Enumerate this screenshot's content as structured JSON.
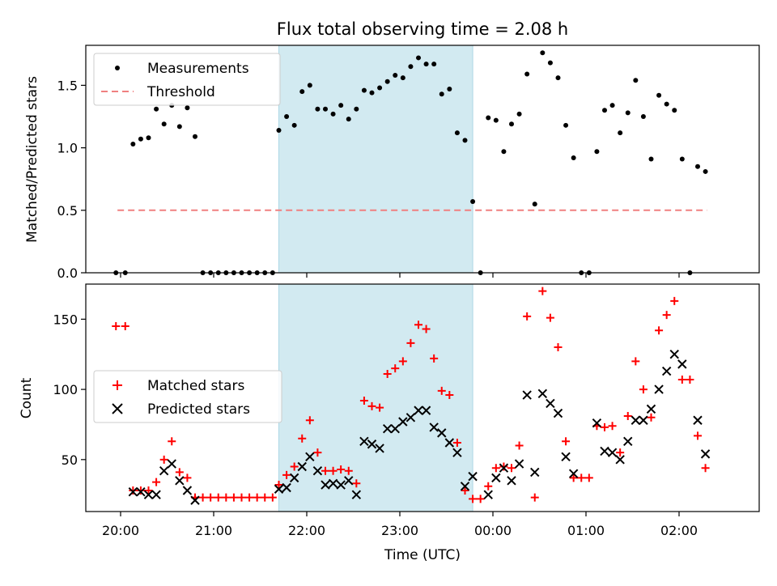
{
  "chart_data": [
    {
      "type": "scatter",
      "title": "Flux total observing time = 2.08 h",
      "xlabel": "",
      "ylabel": "Matched/Predicted stars",
      "ylim": [
        0,
        1.82
      ],
      "yticks": [
        0.0,
        0.5,
        1.0,
        1.5
      ],
      "ytick_labels": [
        "0.0",
        "0.5",
        "1.0",
        "1.5"
      ],
      "xticks": [
        "20:00",
        "21:00",
        "22:00",
        "23:00",
        "00:00",
        "01:00",
        "02:00"
      ],
      "shaded_interval": [
        "21:42",
        "23:47"
      ],
      "shaded_color": "#add8e6",
      "legend": {
        "placement": "upper-left",
        "entries": [
          "Measurements",
          "Threshold"
        ]
      },
      "threshold": {
        "name": "Threshold",
        "value": 0.5,
        "x_start": "19:58",
        "x_end": "02:18",
        "color": "#f08080"
      },
      "series": [
        {
          "name": "Measurements",
          "marker": "dot",
          "color": "#000000",
          "points": [
            [
              "19:57",
              0.0
            ],
            [
              "20:03",
              0.0
            ],
            [
              "20:08",
              1.03
            ],
            [
              "20:13",
              1.07
            ],
            [
              "20:18",
              1.08
            ],
            [
              "20:23",
              1.31
            ],
            [
              "20:28",
              1.19
            ],
            [
              "20:33",
              1.34
            ],
            [
              "20:38",
              1.17
            ],
            [
              "20:43",
              1.32
            ],
            [
              "20:48",
              1.09
            ],
            [
              "20:53",
              0.0
            ],
            [
              "20:58",
              0.0
            ],
            [
              "21:03",
              0.0
            ],
            [
              "21:08",
              0.0
            ],
            [
              "21:13",
              0.0
            ],
            [
              "21:18",
              0.0
            ],
            [
              "21:23",
              0.0
            ],
            [
              "21:28",
              0.0
            ],
            [
              "21:33",
              0.0
            ],
            [
              "21:38",
              0.0
            ],
            [
              "21:42",
              1.14
            ],
            [
              "21:47",
              1.25
            ],
            [
              "21:52",
              1.18
            ],
            [
              "21:57",
              1.45
            ],
            [
              "22:02",
              1.5
            ],
            [
              "22:07",
              1.31
            ],
            [
              "22:12",
              1.31
            ],
            [
              "22:17",
              1.27
            ],
            [
              "22:22",
              1.34
            ],
            [
              "22:27",
              1.23
            ],
            [
              "22:32",
              1.31
            ],
            [
              "22:37",
              1.46
            ],
            [
              "22:42",
              1.44
            ],
            [
              "22:47",
              1.48
            ],
            [
              "22:52",
              1.53
            ],
            [
              "22:57",
              1.58
            ],
            [
              "23:02",
              1.56
            ],
            [
              "23:07",
              1.65
            ],
            [
              "23:12",
              1.72
            ],
            [
              "23:17",
              1.67
            ],
            [
              "23:22",
              1.67
            ],
            [
              "23:27",
              1.43
            ],
            [
              "23:32",
              1.47
            ],
            [
              "23:37",
              1.12
            ],
            [
              "23:42",
              1.06
            ],
            [
              "23:47",
              0.57
            ],
            [
              "23:52",
              0.0
            ],
            [
              "23:57",
              1.24
            ],
            [
              "00:02",
              1.22
            ],
            [
              "00:07",
              0.97
            ],
            [
              "00:12",
              1.19
            ],
            [
              "00:17",
              1.27
            ],
            [
              "00:22",
              1.59
            ],
            [
              "00:27",
              0.55
            ],
            [
              "00:32",
              1.76
            ],
            [
              "00:37",
              1.68
            ],
            [
              "00:42",
              1.56
            ],
            [
              "00:47",
              1.18
            ],
            [
              "00:52",
              0.92
            ],
            [
              "00:57",
              0.0
            ],
            [
              "01:02",
              0.0
            ],
            [
              "01:07",
              0.97
            ],
            [
              "01:12",
              1.3
            ],
            [
              "01:17",
              1.34
            ],
            [
              "01:22",
              1.12
            ],
            [
              "01:27",
              1.28
            ],
            [
              "01:32",
              1.54
            ],
            [
              "01:37",
              1.25
            ],
            [
              "01:42",
              0.91
            ],
            [
              "01:47",
              1.42
            ],
            [
              "01:52",
              1.35
            ],
            [
              "01:57",
              1.3
            ],
            [
              "02:02",
              0.91
            ],
            [
              "02:07",
              0.0
            ],
            [
              "02:12",
              0.85
            ],
            [
              "02:17",
              0.81
            ]
          ]
        }
      ]
    },
    {
      "type": "scatter",
      "title": "",
      "xlabel": "Time (UTC)",
      "ylabel": "Count",
      "ylim": [
        13,
        175
      ],
      "yticks": [
        50,
        100,
        150
      ],
      "ytick_labels": [
        "50",
        "100",
        "150"
      ],
      "xticks": [
        "20:00",
        "21:00",
        "22:00",
        "23:00",
        "00:00",
        "01:00",
        "02:00"
      ],
      "x_tick_labels": [
        "20:00",
        "21:00",
        "22:00",
        "23:00",
        "00:00",
        "01:00",
        "02:00"
      ],
      "shaded_interval": [
        "21:42",
        "23:47"
      ],
      "shaded_color": "#add8e6",
      "legend": {
        "placement": "center-left",
        "entries": [
          "Matched stars",
          "Predicted stars"
        ]
      },
      "series": [
        {
          "name": "Matched stars",
          "marker": "plus",
          "color": "#ff0000",
          "points": [
            [
              "19:57",
              145
            ],
            [
              "20:03",
              145
            ],
            [
              "20:08",
              28
            ],
            [
              "20:13",
              28
            ],
            [
              "20:18",
              28
            ],
            [
              "20:23",
              34
            ],
            [
              "20:28",
              50
            ],
            [
              "20:33",
              63
            ],
            [
              "20:38",
              41
            ],
            [
              "20:43",
              37
            ],
            [
              "20:48",
              23
            ],
            [
              "20:53",
              23
            ],
            [
              "20:58",
              23
            ],
            [
              "21:03",
              23
            ],
            [
              "21:08",
              23
            ],
            [
              "21:13",
              23
            ],
            [
              "21:18",
              23
            ],
            [
              "21:23",
              23
            ],
            [
              "21:28",
              23
            ],
            [
              "21:33",
              23
            ],
            [
              "21:38",
              23
            ],
            [
              "21:42",
              32
            ],
            [
              "21:47",
              39
            ],
            [
              "21:52",
              45
            ],
            [
              "21:57",
              65
            ],
            [
              "22:02",
              78
            ],
            [
              "22:07",
              55
            ],
            [
              "22:12",
              42
            ],
            [
              "22:17",
              42
            ],
            [
              "22:22",
              43
            ],
            [
              "22:27",
              42
            ],
            [
              "22:32",
              33
            ],
            [
              "22:37",
              92
            ],
            [
              "22:42",
              88
            ],
            [
              "22:47",
              87
            ],
            [
              "22:52",
              111
            ],
            [
              "22:57",
              115
            ],
            [
              "23:02",
              120
            ],
            [
              "23:07",
              133
            ],
            [
              "23:12",
              146
            ],
            [
              "23:17",
              143
            ],
            [
              "23:22",
              122
            ],
            [
              "23:27",
              99
            ],
            [
              "23:32",
              96
            ],
            [
              "23:37",
              62
            ],
            [
              "23:42",
              28
            ],
            [
              "23:47",
              22
            ],
            [
              "23:52",
              22
            ],
            [
              "23:57",
              31
            ],
            [
              "00:02",
              44
            ],
            [
              "00:07",
              45
            ],
            [
              "00:12",
              44
            ],
            [
              "00:17",
              60
            ],
            [
              "00:22",
              152
            ],
            [
              "00:27",
              23
            ],
            [
              "00:32",
              170
            ],
            [
              "00:37",
              151
            ],
            [
              "00:42",
              130
            ],
            [
              "00:47",
              63
            ],
            [
              "00:52",
              37
            ],
            [
              "00:57",
              37
            ],
            [
              "01:02",
              37
            ],
            [
              "01:07",
              74
            ],
            [
              "01:12",
              73
            ],
            [
              "01:17",
              74
            ],
            [
              "01:22",
              55
            ],
            [
              "01:27",
              81
            ],
            [
              "01:32",
              120
            ],
            [
              "01:37",
              100
            ],
            [
              "01:42",
              80
            ],
            [
              "01:47",
              142
            ],
            [
              "01:52",
              153
            ],
            [
              "01:57",
              163
            ],
            [
              "02:02",
              107
            ],
            [
              "02:07",
              107
            ],
            [
              "02:12",
              67
            ],
            [
              "02:17",
              44
            ]
          ]
        },
        {
          "name": "Predicted stars",
          "marker": "cross",
          "color": "#000000",
          "points": [
            [
              "20:08",
              27
            ],
            [
              "20:13",
              27
            ],
            [
              "20:18",
              25
            ],
            [
              "20:23",
              25
            ],
            [
              "20:28",
              42
            ],
            [
              "20:33",
              47
            ],
            [
              "20:38",
              35
            ],
            [
              "20:43",
              28
            ],
            [
              "20:48",
              21
            ],
            [
              "21:42",
              29
            ],
            [
              "21:47",
              30
            ],
            [
              "21:52",
              37
            ],
            [
              "21:57",
              45
            ],
            [
              "22:02",
              52
            ],
            [
              "22:07",
              42
            ],
            [
              "22:12",
              32
            ],
            [
              "22:17",
              33
            ],
            [
              "22:22",
              32
            ],
            [
              "22:27",
              35
            ],
            [
              "22:32",
              25
            ],
            [
              "22:37",
              63
            ],
            [
              "22:42",
              61
            ],
            [
              "22:47",
              58
            ],
            [
              "22:52",
              72
            ],
            [
              "22:57",
              72
            ],
            [
              "23:02",
              77
            ],
            [
              "23:07",
              80
            ],
            [
              "23:12",
              85
            ],
            [
              "23:17",
              85
            ],
            [
              "23:22",
              73
            ],
            [
              "23:27",
              69
            ],
            [
              "23:32",
              62
            ],
            [
              "23:37",
              55
            ],
            [
              "23:42",
              31
            ],
            [
              "23:47",
              38
            ],
            [
              "23:57",
              25
            ],
            [
              "00:02",
              37
            ],
            [
              "00:07",
              44
            ],
            [
              "00:12",
              35
            ],
            [
              "00:17",
              47
            ],
            [
              "00:22",
              96
            ],
            [
              "00:27",
              41
            ],
            [
              "00:32",
              97
            ],
            [
              "00:37",
              90
            ],
            [
              "00:42",
              83
            ],
            [
              "00:47",
              52
            ],
            [
              "00:52",
              40
            ],
            [
              "01:07",
              76
            ],
            [
              "01:12",
              56
            ],
            [
              "01:17",
              55
            ],
            [
              "01:22",
              50
            ],
            [
              "01:27",
              63
            ],
            [
              "01:32",
              78
            ],
            [
              "01:37",
              78
            ],
            [
              "01:42",
              86
            ],
            [
              "01:47",
              100
            ],
            [
              "01:52",
              113
            ],
            [
              "01:57",
              125
            ],
            [
              "02:02",
              118
            ],
            [
              "02:12",
              78
            ],
            [
              "02:17",
              54
            ]
          ]
        }
      ]
    }
  ]
}
